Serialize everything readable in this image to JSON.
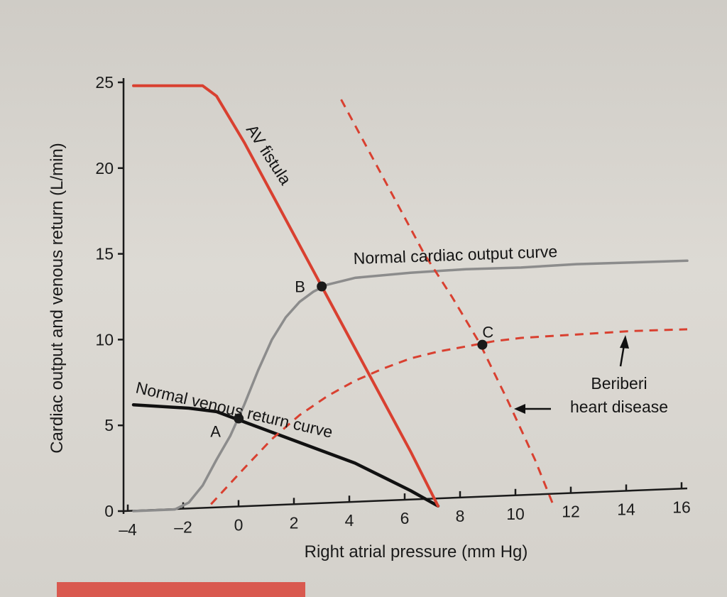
{
  "chart_data": {
    "type": "line",
    "xlabel": "Right atrial pressure (mm Hg)",
    "ylabel": "Cardiac output and venous return (L/min)",
    "x_ticks": [
      "–4",
      "–2",
      "0",
      "2",
      "4",
      "6",
      "8",
      "10",
      "12",
      "14",
      "16"
    ],
    "y_ticks": [
      "0",
      "5",
      "10",
      "15",
      "20",
      "25"
    ],
    "xlim": [
      -4,
      16
    ],
    "ylim": [
      0,
      25
    ],
    "grid": false,
    "series": [
      {
        "name": "Normal cardiac output curve",
        "style": "solid-gray",
        "color": "#8c8c8c",
        "points": [
          [
            -4,
            0
          ],
          [
            -2.5,
            0.1
          ],
          [
            -2,
            0.5
          ],
          [
            -1.5,
            1.5
          ],
          [
            -1,
            3
          ],
          [
            -0.5,
            4.4
          ],
          [
            0,
            6.2
          ],
          [
            0.5,
            8.2
          ],
          [
            1,
            10
          ],
          [
            1.5,
            11.3
          ],
          [
            2,
            12.2
          ],
          [
            2.5,
            12.8
          ],
          [
            3,
            13.2
          ],
          [
            4,
            13.6
          ],
          [
            6,
            13.9
          ],
          [
            8,
            14.1
          ],
          [
            10,
            14.2
          ],
          [
            12,
            14.4
          ],
          [
            14,
            14.5
          ],
          [
            16,
            14.6
          ]
        ]
      },
      {
        "name": "Normal venous return curve",
        "style": "solid-black",
        "color": "#111111",
        "points": [
          [
            -4,
            6.2
          ],
          [
            -2,
            6
          ],
          [
            -1,
            5.8
          ],
          [
            0,
            5.2
          ],
          [
            1,
            4.6
          ],
          [
            2,
            4
          ],
          [
            3,
            3.4
          ],
          [
            4,
            2.8
          ],
          [
            5,
            2
          ],
          [
            6,
            1.2
          ],
          [
            7,
            0.3
          ]
        ]
      },
      {
        "name": "AV fistula",
        "style": "solid-red",
        "color": "#d94030",
        "points": [
          [
            -4,
            24.8
          ],
          [
            -1.5,
            24.8
          ],
          [
            -1,
            24.2
          ],
          [
            0,
            21.5
          ],
          [
            1,
            18.5
          ],
          [
            2,
            15.5
          ],
          [
            3,
            12.5
          ],
          [
            4,
            9.5
          ],
          [
            5,
            6.5
          ],
          [
            6,
            3.5
          ],
          [
            7,
            0.3
          ]
        ]
      },
      {
        "name": "Beriberi heart disease",
        "style": "dashed-red",
        "color": "#d94030",
        "points": [
          [
            -1.2,
            0.4
          ],
          [
            0,
            2.5
          ],
          [
            1,
            4.2
          ],
          [
            2,
            5.6
          ],
          [
            3,
            6.7
          ],
          [
            4,
            7.6
          ],
          [
            5,
            8.3
          ],
          [
            6,
            8.9
          ],
          [
            7,
            9.3
          ],
          [
            8,
            9.6
          ],
          [
            9,
            9.9
          ],
          [
            10,
            10.1
          ],
          [
            12,
            10.3
          ],
          [
            14,
            10.5
          ],
          [
            16,
            10.6
          ]
        ]
      },
      {
        "name": "Beriberi heart disease",
        "style": "dashed-red",
        "color": "#d94030",
        "points": [
          [
            3.5,
            24
          ],
          [
            4.5,
            21
          ],
          [
            5.5,
            18
          ],
          [
            6.5,
            15
          ],
          [
            7.5,
            12.5
          ],
          [
            8.5,
            9.8
          ],
          [
            9.5,
            6.5
          ],
          [
            10.5,
            3
          ],
          [
            11.2,
            0.2
          ]
        ]
      }
    ],
    "points": [
      {
        "label": "A",
        "x": -0.2,
        "y": 5.4
      },
      {
        "label": "B",
        "x": 2.8,
        "y": 13.1
      },
      {
        "label": "C",
        "x": 8.6,
        "y": 9.7
      }
    ],
    "annotations": [
      {
        "text": "AV fistula"
      },
      {
        "text": "Normal cardiac output curve"
      },
      {
        "text": "Normal venous return curve"
      },
      {
        "text": "Beriberi"
      },
      {
        "text": "heart disease"
      }
    ]
  },
  "colors": {
    "red": "#d94030",
    "black": "#111111",
    "gray": "#8c8c8c"
  }
}
